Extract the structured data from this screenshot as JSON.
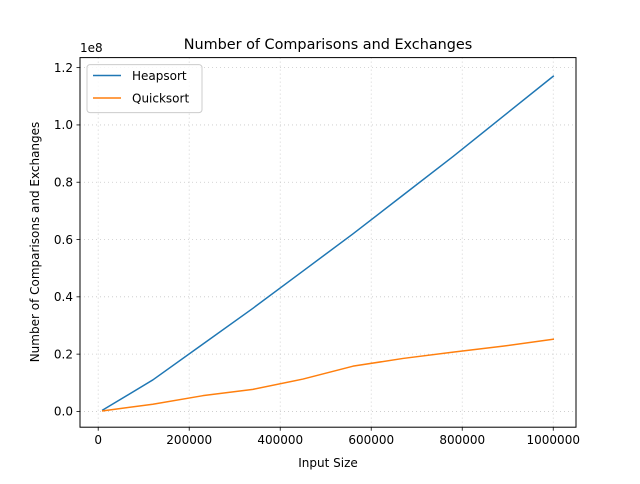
{
  "chart_data": {
    "type": "line",
    "title": "Number of Comparisons and Exchanges",
    "xlabel": "Input Size",
    "ylabel": "Number of Comparisons and Exchanges",
    "y_offset_label": "1e8",
    "y_scale": 100000000,
    "xlim": [
      -40000,
      1050000
    ],
    "ylim": [
      -0.055,
      1.235
    ],
    "x_ticks": [
      0,
      200000,
      400000,
      600000,
      800000,
      1000000
    ],
    "x_tick_labels": [
      "0",
      "200000",
      "400000",
      "600000",
      "800000",
      "1000000"
    ],
    "y_ticks": [
      0.0,
      0.2,
      0.4,
      0.6,
      0.8,
      1.0,
      1.2
    ],
    "y_tick_labels": [
      "0.0",
      "0.2",
      "0.4",
      "0.6",
      "0.8",
      "1.0",
      "1.2"
    ],
    "grid": true,
    "legend_position": "top-left",
    "x": [
      10000,
      120000,
      230000,
      340000,
      450000,
      560000,
      670000,
      780000,
      890000,
      1000000
    ],
    "series": [
      {
        "name": "Heapsort",
        "color": "#1f77b4",
        "values": [
          0.005,
          0.11,
          0.235,
          0.36,
          0.49,
          0.62,
          0.755,
          0.89,
          1.03,
          1.17
        ]
      },
      {
        "name": "Quicksort",
        "color": "#ff7f0e",
        "values": [
          0.002,
          0.025,
          0.055,
          0.077,
          0.113,
          0.158,
          0.185,
          0.207,
          0.228,
          0.252
        ]
      }
    ]
  }
}
